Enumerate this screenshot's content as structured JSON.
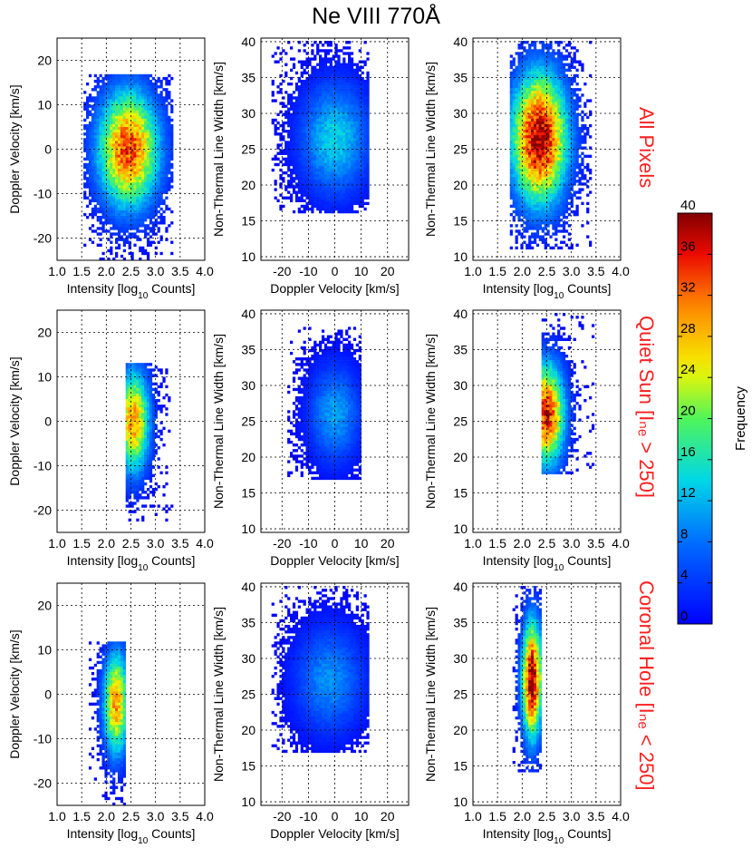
{
  "figure_title": "Ne VIII 770Å",
  "row_labels": [
    "All Pixels",
    "Quiet Sun [Iₙₑ > 250]",
    "Coronal Hole [Iₙₑ < 250]"
  ],
  "colorbar": {
    "label": "Frequency",
    "range": [
      0,
      40
    ],
    "ticks": [
      "0",
      "4",
      "8",
      "12",
      "16",
      "20",
      "24",
      "28",
      "32",
      "36",
      "40"
    ],
    "colormap": "rainbow (blue → cyan → green → yellow → red → dark red)"
  },
  "colors": {
    "row_label": "#ff2020",
    "grid": "#000000"
  },
  "chart_data": [
    {
      "type": "heatmap",
      "panel": "all-intensity-doppler",
      "row": "All Pixels",
      "xlabel": "Intensity [log10 Counts]",
      "ylabel": "Doppler Velocity [km/s]",
      "xlim": [
        1.0,
        4.0
      ],
      "ylim": [
        -25,
        25
      ],
      "xticks": [
        "1.0",
        "1.5",
        "2.0",
        "2.5",
        "3.0",
        "3.5",
        "4.0"
      ],
      "yticks": [
        "-20",
        "-10",
        "0",
        "10",
        "20"
      ],
      "peak": {
        "x": 2.45,
        "y": 0,
        "value": 34
      },
      "x_extent": [
        1.55,
        3.35
      ],
      "y_extent": [
        -25,
        17
      ]
    },
    {
      "type": "heatmap",
      "panel": "all-doppler-width",
      "row": "All Pixels",
      "xlabel": "Doppler Velocity [km/s]",
      "ylabel": "Non-Thermal Line Width [km/s]",
      "xlim": [
        -28,
        28
      ],
      "ylim": [
        9.5,
        40.5
      ],
      "xticks": [
        "-20",
        "-10",
        "0",
        "10",
        "20"
      ],
      "yticks": [
        "10",
        "15",
        "20",
        "25",
        "30",
        "35",
        "40"
      ],
      "peak": {
        "x": 0,
        "y": 26.5,
        "value": 14
      },
      "x_extent": [
        -24,
        13
      ],
      "y_extent": [
        16,
        40
      ]
    },
    {
      "type": "heatmap",
      "panel": "all-intensity-width",
      "row": "All Pixels",
      "xlabel": "Intensity [log10 Counts]",
      "ylabel": "Non-Thermal Line Width [km/s]",
      "xlim": [
        1.0,
        4.0
      ],
      "ylim": [
        9.5,
        40.5
      ],
      "xticks": [
        "1.0",
        "1.5",
        "2.0",
        "2.5",
        "3.0",
        "3.5",
        "4.0"
      ],
      "yticks": [
        "10",
        "15",
        "20",
        "25",
        "30",
        "35",
        "40"
      ],
      "peak": {
        "x": 2.35,
        "y": 26.5,
        "value": 40
      },
      "x_extent": [
        1.75,
        3.4
      ],
      "y_extent": [
        11,
        40
      ]
    },
    {
      "type": "heatmap",
      "panel": "qs-intensity-doppler",
      "row": "Quiet Sun",
      "xlabel": "Intensity [log10 Counts]",
      "ylabel": "Doppler Velocity [km/s]",
      "xlim": [
        1.0,
        4.0
      ],
      "ylim": [
        -25,
        25
      ],
      "xticks": [
        "1.0",
        "1.5",
        "2.0",
        "2.5",
        "3.0",
        "3.5",
        "4.0"
      ],
      "yticks": [
        "-20",
        "-10",
        "0",
        "10",
        "20"
      ],
      "peak": {
        "x": 2.55,
        "y": 0,
        "value": 30
      },
      "x_extent": [
        2.4,
        3.35
      ],
      "y_extent": [
        -24,
        13
      ]
    },
    {
      "type": "heatmap",
      "panel": "qs-doppler-width",
      "row": "Quiet Sun",
      "xlabel": "Doppler Velocity [km/s]",
      "ylabel": "Non-Thermal Line Width [km/s]",
      "xlim": [
        -28,
        28
      ],
      "ylim": [
        9.5,
        40.5
      ],
      "xticks": [
        "-20",
        "-10",
        "0",
        "10",
        "20"
      ],
      "yticks": [
        "10",
        "15",
        "20",
        "25",
        "30",
        "35",
        "40"
      ],
      "peak": {
        "x": 0,
        "y": 26,
        "value": 11
      },
      "x_extent": [
        -18,
        10
      ],
      "y_extent": [
        17,
        38
      ]
    },
    {
      "type": "heatmap",
      "panel": "qs-intensity-width",
      "row": "Quiet Sun",
      "xlabel": "Intensity [log10 Counts]",
      "ylabel": "Non-Thermal Line Width [km/s]",
      "xlim": [
        1.0,
        4.0
      ],
      "ylim": [
        9.5,
        40.5
      ],
      "xticks": [
        "1.0",
        "1.5",
        "2.0",
        "2.5",
        "3.0",
        "3.5",
        "4.0"
      ],
      "yticks": [
        "10",
        "15",
        "20",
        "25",
        "30",
        "35",
        "40"
      ],
      "peak": {
        "x": 2.5,
        "y": 26,
        "value": 36
      },
      "x_extent": [
        2.4,
        3.45
      ],
      "y_extent": [
        17.5,
        40
      ]
    },
    {
      "type": "heatmap",
      "panel": "ch-intensity-doppler",
      "row": "Coronal Hole",
      "xlabel": "Intensity [log10 Counts]",
      "ylabel": "Doppler Velocity [km/s]",
      "xlim": [
        1.0,
        4.0
      ],
      "ylim": [
        -25,
        25
      ],
      "xticks": [
        "1.0",
        "1.5",
        "2.0",
        "2.5",
        "3.0",
        "3.5",
        "4.0"
      ],
      "yticks": [
        "-20",
        "-10",
        "0",
        "10",
        "20"
      ],
      "peak": {
        "x": 2.2,
        "y": -2,
        "value": 30
      },
      "x_extent": [
        1.65,
        2.4
      ],
      "y_extent": [
        -25,
        12
      ]
    },
    {
      "type": "heatmap",
      "panel": "ch-doppler-width",
      "row": "Coronal Hole",
      "xlabel": "Doppler Velocity [km/s]",
      "ylabel": "Non-Thermal Line Width [km/s]",
      "xlim": [
        -28,
        28
      ],
      "ylim": [
        9.5,
        40.5
      ],
      "xticks": [
        "-20",
        "-10",
        "0",
        "10",
        "20"
      ],
      "yticks": [
        "10",
        "15",
        "20",
        "25",
        "30",
        "35",
        "40"
      ],
      "peak": {
        "x": -2,
        "y": 27,
        "value": 10
      },
      "x_extent": [
        -24,
        13
      ],
      "y_extent": [
        17,
        40
      ]
    },
    {
      "type": "heatmap",
      "panel": "ch-intensity-width",
      "row": "Coronal Hole",
      "xlabel": "Intensity [log10 Counts]",
      "ylabel": "Non-Thermal Line Width [km/s]",
      "xlim": [
        1.0,
        4.0
      ],
      "ylim": [
        9.5,
        40.5
      ],
      "xticks": [
        "1.0",
        "1.5",
        "2.0",
        "2.5",
        "3.0",
        "3.5",
        "4.0"
      ],
      "yticks": [
        "10",
        "15",
        "20",
        "25",
        "30",
        "35",
        "40"
      ],
      "peak": {
        "x": 2.2,
        "y": 27,
        "value": 40
      },
      "x_extent": [
        1.8,
        2.4
      ],
      "y_extent": [
        14,
        40
      ]
    }
  ]
}
